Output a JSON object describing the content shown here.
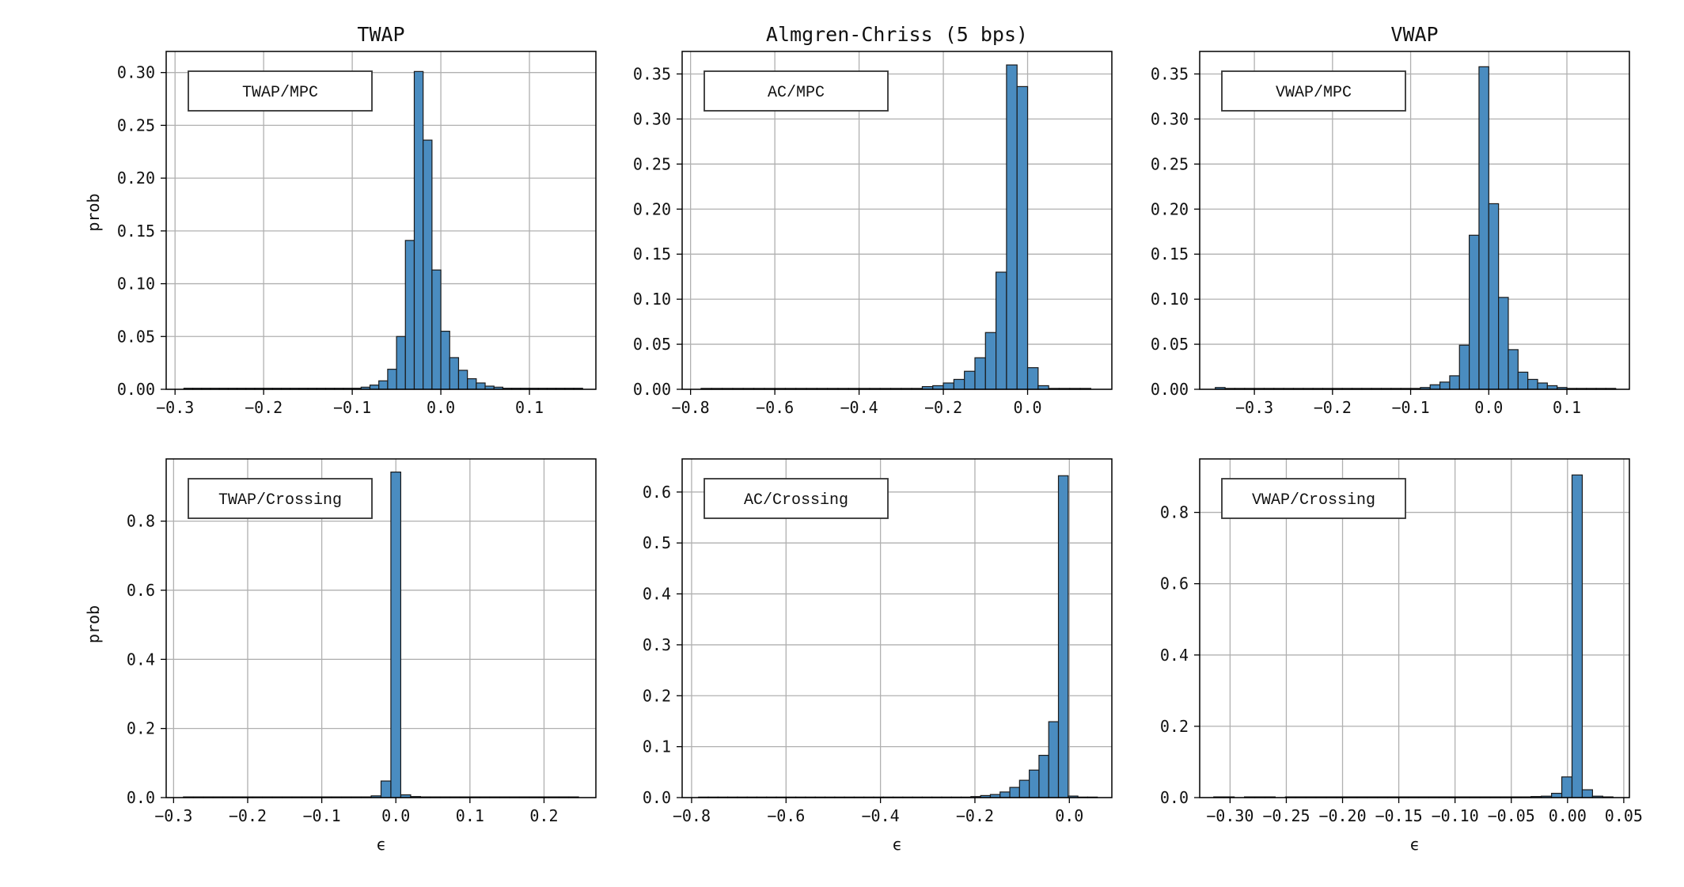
{
  "chart_data": [
    {
      "type": "bar",
      "title": "TWAP",
      "xlabel": "",
      "ylabel": "prob",
      "legend": "TWAP/MPC",
      "legend_position": "top-left",
      "grid": true,
      "xlim": [
        -0.31,
        0.175
      ],
      "ylim": [
        0,
        0.32
      ],
      "bin_width": 0.01,
      "xticks": [
        -0.3,
        -0.2,
        -0.1,
        0.0,
        0.1
      ],
      "xtick_labels": [
        "−0.3",
        "−0.2",
        "−0.1",
        "0.0",
        "0.1"
      ],
      "yticks": [
        0,
        0.05,
        0.1,
        0.15,
        0.2,
        0.25,
        0.3
      ],
      "ytick_labels": [
        "0.00",
        "0.05",
        "0.10",
        "0.15",
        "0.20",
        "0.25",
        "0.30"
      ],
      "bins": [
        -0.29,
        -0.28,
        -0.27,
        -0.26,
        -0.25,
        -0.24,
        -0.23,
        -0.22,
        -0.21,
        -0.2,
        -0.19,
        -0.18,
        -0.17,
        -0.16,
        -0.15,
        -0.14,
        -0.13,
        -0.12,
        -0.11,
        -0.1,
        -0.09,
        -0.08,
        -0.07,
        -0.06,
        -0.05,
        -0.04,
        -0.03,
        -0.02,
        -0.01,
        0.0,
        0.01,
        0.02,
        0.03,
        0.04,
        0.05,
        0.06,
        0.07,
        0.08,
        0.09,
        0.1,
        0.11,
        0.12,
        0.13,
        0.14,
        0.15
      ],
      "values": [
        0.001,
        0.001,
        0.001,
        0.001,
        0.001,
        0.001,
        0.001,
        0.001,
        0.001,
        0.001,
        0.001,
        0.001,
        0.001,
        0.001,
        0.001,
        0.001,
        0.001,
        0.001,
        0.001,
        0.001,
        0.002,
        0.004,
        0.008,
        0.019,
        0.05,
        0.141,
        0.301,
        0.236,
        0.113,
        0.055,
        0.03,
        0.018,
        0.01,
        0.006,
        0.003,
        0.002,
        0.001,
        0.001,
        0.001,
        0.001,
        0.001,
        0.001,
        0.001,
        0.001,
        0.001
      ]
    },
    {
      "type": "bar",
      "title": "Almgren-Chriss (5 bps)",
      "xlabel": "",
      "ylabel": "",
      "legend": "AC/MPC",
      "legend_position": "top-left",
      "grid": true,
      "xlim": [
        -0.82,
        0.2
      ],
      "ylim": [
        0,
        0.375
      ],
      "bin_width": 0.025,
      "xticks": [
        -0.8,
        -0.6,
        -0.4,
        -0.2,
        0.0
      ],
      "xtick_labels": [
        "−0.8",
        "−0.6",
        "−0.4",
        "−0.2",
        "0.0"
      ],
      "yticks": [
        0,
        0.05,
        0.1,
        0.15,
        0.2,
        0.25,
        0.3,
        0.35
      ],
      "ytick_labels": [
        "0.00",
        "0.05",
        "0.10",
        "0.15",
        "0.20",
        "0.25",
        "0.30",
        "0.35"
      ],
      "bins": [
        -0.775,
        -0.75,
        -0.725,
        -0.7,
        -0.675,
        -0.65,
        -0.625,
        -0.6,
        -0.575,
        -0.55,
        -0.525,
        -0.5,
        -0.475,
        -0.45,
        -0.425,
        -0.4,
        -0.375,
        -0.35,
        -0.325,
        -0.3,
        -0.275,
        -0.25,
        -0.225,
        -0.2,
        -0.175,
        -0.15,
        -0.125,
        -0.1,
        -0.075,
        -0.05,
        -0.025,
        0.0,
        0.025,
        0.05,
        0.075,
        0.1,
        0.125
      ],
      "values": [
        0.001,
        0.001,
        0.001,
        0.001,
        0.001,
        0.001,
        0.001,
        0.001,
        0.001,
        0.001,
        0.001,
        0.001,
        0.001,
        0.001,
        0.001,
        0.001,
        0.001,
        0.001,
        0.001,
        0.001,
        0.001,
        0.003,
        0.004,
        0.007,
        0.011,
        0.02,
        0.035,
        0.063,
        0.13,
        0.36,
        0.336,
        0.024,
        0.004,
        0.001,
        0.001,
        0.001,
        0.001
      ]
    },
    {
      "type": "bar",
      "title": "VWAP",
      "xlabel": "",
      "ylabel": "",
      "legend": "VWAP/MPC",
      "legend_position": "top-left",
      "grid": true,
      "xlim": [
        -0.37,
        0.18
      ],
      "ylim": [
        0,
        0.375
      ],
      "bin_width": 0.0125,
      "xticks": [
        -0.3,
        -0.2,
        -0.1,
        0.0,
        0.1
      ],
      "xtick_labels": [
        "−0.3",
        "−0.2",
        "−0.1",
        "0.0",
        "0.1"
      ],
      "yticks": [
        0,
        0.05,
        0.1,
        0.15,
        0.2,
        0.25,
        0.3,
        0.35
      ],
      "ytick_labels": [
        "0.00",
        "0.05",
        "0.10",
        "0.15",
        "0.20",
        "0.25",
        "0.30",
        "0.35"
      ],
      "bins": [
        -0.35,
        -0.3375,
        -0.325,
        -0.3125,
        -0.3,
        -0.2875,
        -0.275,
        -0.2625,
        -0.25,
        -0.2375,
        -0.225,
        -0.2125,
        -0.2,
        -0.1875,
        -0.175,
        -0.1625,
        -0.15,
        -0.1375,
        -0.125,
        -0.1125,
        -0.1,
        -0.0875,
        -0.075,
        -0.0625,
        -0.05,
        -0.0375,
        -0.025,
        -0.0125,
        0.0,
        0.0125,
        0.025,
        0.0375,
        0.05,
        0.0625,
        0.075,
        0.0875,
        0.1,
        0.1125,
        0.125,
        0.1375,
        0.15
      ],
      "values": [
        0.002,
        0.001,
        0.001,
        0.001,
        0.001,
        0.001,
        0.001,
        0.001,
        0.001,
        0.001,
        0.001,
        0.001,
        0.001,
        0.001,
        0.001,
        0.001,
        0.001,
        0.001,
        0.001,
        0.001,
        0.001,
        0.002,
        0.005,
        0.008,
        0.015,
        0.049,
        0.171,
        0.358,
        0.206,
        0.102,
        0.044,
        0.019,
        0.011,
        0.007,
        0.004,
        0.002,
        0.001,
        0.001,
        0.001,
        0.001,
        0.001
      ]
    },
    {
      "type": "bar",
      "title": "",
      "xlabel": "ϵ",
      "ylabel": "prob",
      "legend": "TWAP/Crossing",
      "legend_position": "top-left",
      "grid": true,
      "xlim": [
        -0.31,
        0.27
      ],
      "ylim": [
        0,
        0.98
      ],
      "bin_width": 0.0133,
      "xticks": [
        -0.3,
        -0.2,
        -0.1,
        0.0,
        0.1,
        0.2
      ],
      "xtick_labels": [
        "−0.3",
        "−0.2",
        "−0.1",
        "0.0",
        "0.1",
        "0.2"
      ],
      "yticks": [
        0,
        0.2,
        0.4,
        0.6,
        0.8
      ],
      "ytick_labels": [
        "0.0",
        "0.2",
        "0.4",
        "0.6",
        "0.8"
      ],
      "bins": [
        -0.2867,
        -0.2733,
        -0.26,
        -0.2467,
        -0.2333,
        -0.22,
        -0.2067,
        -0.1933,
        -0.18,
        -0.1667,
        -0.1533,
        -0.14,
        -0.1267,
        -0.1133,
        -0.1,
        -0.0867,
        -0.0733,
        -0.06,
        -0.0467,
        -0.0333,
        -0.02,
        -0.0067,
        0.0067,
        0.02,
        0.0333,
        0.0467,
        0.06,
        0.0733,
        0.0867,
        0.1,
        0.1133,
        0.1267,
        0.14,
        0.1533,
        0.1667,
        0.18,
        0.1933,
        0.2067,
        0.22,
        0.2333
      ],
      "values": [
        0.002,
        0.002,
        0.002,
        0.002,
        0.002,
        0.002,
        0.002,
        0.002,
        0.002,
        0.002,
        0.002,
        0.002,
        0.002,
        0.002,
        0.002,
        0.002,
        0.002,
        0.002,
        0.002,
        0.005,
        0.048,
        0.942,
        0.008,
        0.003,
        0.002,
        0.002,
        0.002,
        0.002,
        0.002,
        0.002,
        0.002,
        0.002,
        0.002,
        0.002,
        0.002,
        0.002,
        0.002,
        0.002,
        0.002,
        0.002
      ]
    },
    {
      "type": "bar",
      "title": "",
      "xlabel": "ϵ",
      "ylabel": "",
      "legend": "AC/Crossing",
      "legend_position": "top-left",
      "grid": true,
      "xlim": [
        -0.82,
        0.09
      ],
      "ylim": [
        0,
        0.665
      ],
      "bin_width": 0.0206,
      "xticks": [
        -0.8,
        -0.6,
        -0.4,
        -0.2,
        0.0
      ],
      "xtick_labels": [
        "−0.8",
        "−0.6",
        "−0.4",
        "−0.2",
        "0.0"
      ],
      "yticks": [
        0,
        0.1,
        0.2,
        0.3,
        0.4,
        0.5,
        0.6
      ],
      "ytick_labels": [
        "0.0",
        "0.1",
        "0.2",
        "0.3",
        "0.4",
        "0.5",
        "0.6"
      ],
      "bins": [
        -0.7853,
        -0.7647,
        -0.7441,
        -0.7235,
        -0.7029,
        -0.6823,
        -0.6617,
        -0.6411,
        -0.6205,
        -0.5999,
        -0.5793,
        -0.5587,
        -0.5381,
        -0.5175,
        -0.4969,
        -0.4763,
        -0.4557,
        -0.4351,
        -0.4145,
        -0.3939,
        -0.3733,
        -0.3527,
        -0.3321,
        -0.3115,
        -0.2909,
        -0.2703,
        -0.2497,
        -0.2291,
        -0.2085,
        -0.1879,
        -0.1673,
        -0.1467,
        -0.1261,
        -0.1055,
        -0.0849,
        -0.0643,
        -0.0437,
        -0.0231,
        -0.0025,
        0.0181,
        0.0387
      ],
      "values": [
        0.001,
        0.001,
        0.001,
        0.001,
        0.001,
        0.001,
        0.001,
        0.001,
        0.001,
        0.001,
        0.001,
        0.001,
        0.001,
        0.001,
        0.001,
        0.001,
        0.001,
        0.001,
        0.001,
        0.001,
        0.001,
        0.001,
        0.001,
        0.001,
        0.001,
        0.001,
        0.001,
        0.001,
        0.002,
        0.004,
        0.006,
        0.011,
        0.02,
        0.034,
        0.054,
        0.083,
        0.149,
        0.632,
        0.003,
        0.001,
        0.001
      ]
    },
    {
      "type": "bar",
      "title": "",
      "xlabel": "ϵ",
      "ylabel": "",
      "legend": "VWAP/Crossing",
      "legend_position": "top-left",
      "grid": true,
      "xlim": [
        -0.327,
        0.055
      ],
      "ylim": [
        0,
        0.95
      ],
      "bin_width": 0.0091,
      "xticks": [
        -0.3,
        -0.25,
        -0.2,
        -0.15,
        -0.1,
        -0.05,
        0.0,
        0.05
      ],
      "xtick_labels": [
        "−0.30",
        "−0.25",
        "−0.20",
        "−0.15",
        "−0.10",
        "−0.05",
        "0.00",
        "0.05"
      ],
      "yticks": [
        0,
        0.2,
        0.4,
        0.6,
        0.8
      ],
      "ytick_labels": [
        "0.0",
        "0.2",
        "0.4",
        "0.6",
        "0.8"
      ],
      "bins": [
        -0.3145,
        -0.3054,
        -0.2963,
        -0.2872,
        -0.2781,
        -0.269,
        -0.2599,
        -0.2508,
        -0.2417,
        -0.2326,
        -0.2235,
        -0.2144,
        -0.2053,
        -0.1962,
        -0.1871,
        -0.178,
        -0.1689,
        -0.1598,
        -0.1507,
        -0.1416,
        -0.1325,
        -0.1234,
        -0.1143,
        -0.1052,
        -0.0961,
        -0.087,
        -0.0779,
        -0.0688,
        -0.0597,
        -0.0506,
        -0.0415,
        -0.0324,
        -0.0233,
        -0.0142,
        -0.0051,
        0.004,
        0.0131,
        0.0222,
        0.0313
      ],
      "values": [
        0.002,
        0.002,
        0.0,
        0.002,
        0.002,
        0.002,
        0.0,
        0.002,
        0.002,
        0.002,
        0.002,
        0.002,
        0.002,
        0.002,
        0.002,
        0.002,
        0.002,
        0.002,
        0.002,
        0.002,
        0.002,
        0.002,
        0.002,
        0.002,
        0.002,
        0.002,
        0.002,
        0.002,
        0.002,
        0.002,
        0.002,
        0.003,
        0.004,
        0.012,
        0.058,
        0.905,
        0.022,
        0.004,
        0.002
      ]
    }
  ]
}
